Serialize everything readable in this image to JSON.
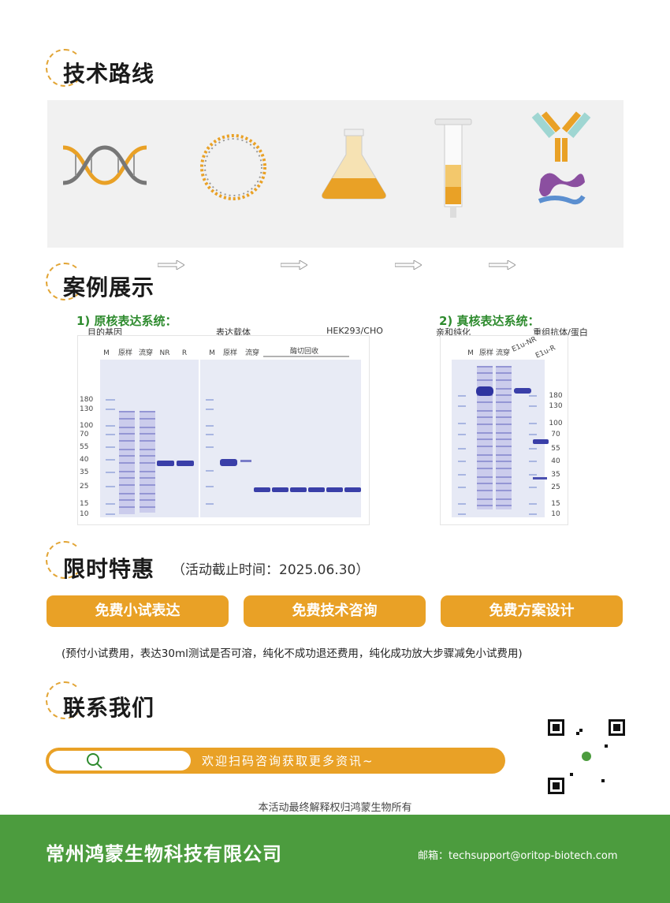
{
  "sections": {
    "tech_route": "技术路线",
    "cases": "案例展示",
    "offer": "限时特惠",
    "offer_deadline": "（活动截止时间：2025.06.30）",
    "contact": "联系我们"
  },
  "route_steps": [
    {
      "label": "目的基因",
      "icon": "dna-icon"
    },
    {
      "label": "表达载体",
      "icon": "plasmid-icon"
    },
    {
      "label": "HEK293/CHO",
      "icon": "flask-icon"
    },
    {
      "label": "亲和纯化",
      "icon": "column-icon"
    },
    {
      "label": "重组抗体/蛋白",
      "icon": "antibody-protein-icon"
    }
  ],
  "case1": {
    "title": "1) 原核表达系统：",
    "gel_a_lanes": [
      "M",
      "原样",
      "流穿",
      "NR",
      "R"
    ],
    "gel_b_lanes": [
      "M",
      "原样",
      "流穿"
    ],
    "gel_b_group": "酶切回收",
    "markers": [
      "180",
      "130",
      "100",
      "70",
      "55",
      "40",
      "35",
      "25",
      "15",
      "10"
    ]
  },
  "case2": {
    "title": "2) 真核表达系统：",
    "lanes": [
      "M",
      "原样",
      "流穿",
      "E1u-NR",
      "E1u-R"
    ],
    "markers": [
      "180",
      "130",
      "100",
      "70",
      "55",
      "40",
      "35",
      "25",
      "15",
      "10"
    ]
  },
  "offers": [
    "免费小试表达",
    "免费技术咨询",
    "免费方案设计"
  ],
  "offer_note": "(预付小试费用，表达30ml测试是否可溶，纯化不成功退还费用，纯化成功放大步骤减免小试费用)",
  "contact": {
    "search_text": "欢迎扫码咨询获取更多资讯~",
    "disclaimer": "本活动最终解释权归鸿蒙生物所有"
  },
  "footer": {
    "company": "常州鸿蒙生物科技有限公司",
    "email_label": "邮箱：",
    "email": "techsupport@oritop-biotech.com"
  },
  "colors": {
    "accent": "#e9a126",
    "green": "#4c9c3e",
    "subtitle_green": "#2e8b2e",
    "gel_blue": "#3a3fa8"
  }
}
